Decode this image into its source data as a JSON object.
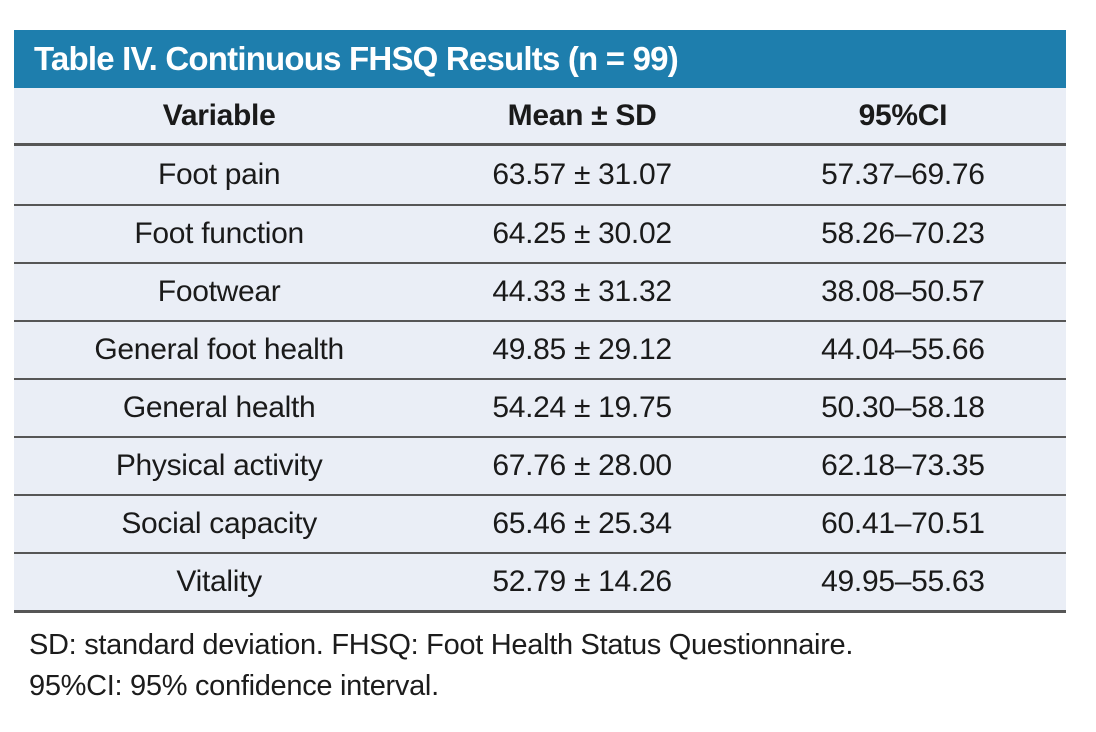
{
  "figure": {
    "title": "Table IV. Continuous FHSQ Results (n = 99)",
    "columns": [
      "Variable",
      "Mean ± SD",
      "95%CI"
    ],
    "rows": [
      {
        "variable": "Foot pain",
        "mean_sd": "63.57 ± 31.07",
        "ci": "57.37–69.76"
      },
      {
        "variable": "Foot function",
        "mean_sd": "64.25 ± 30.02",
        "ci": "58.26–70.23"
      },
      {
        "variable": "Footwear",
        "mean_sd": "44.33 ± 31.32",
        "ci": "38.08–50.57"
      },
      {
        "variable": "General foot health",
        "mean_sd": "49.85 ± 29.12",
        "ci": "44.04–55.66"
      },
      {
        "variable": "General health",
        "mean_sd": "54.24 ± 19.75",
        "ci": "50.30–58.18"
      },
      {
        "variable": "Physical activity",
        "mean_sd": "67.76 ± 28.00",
        "ci": "62.18–73.35"
      },
      {
        "variable": "Social capacity",
        "mean_sd": "65.46 ± 25.34",
        "ci": "60.41–70.51"
      },
      {
        "variable": "Vitality",
        "mean_sd": "52.79 ± 14.26",
        "ci": "49.95–55.63"
      }
    ],
    "footnotes": [
      "SD: standard deviation. FHSQ: Foot Health Status Questionnaire.",
      "95%CI: 95% confidence interval."
    ],
    "colors": {
      "header_bar": "#1e7ead",
      "title_text": "#ffffff",
      "row_background": "#eaeef6",
      "rule": "#565656",
      "body_text": "#1a1a1a"
    }
  }
}
